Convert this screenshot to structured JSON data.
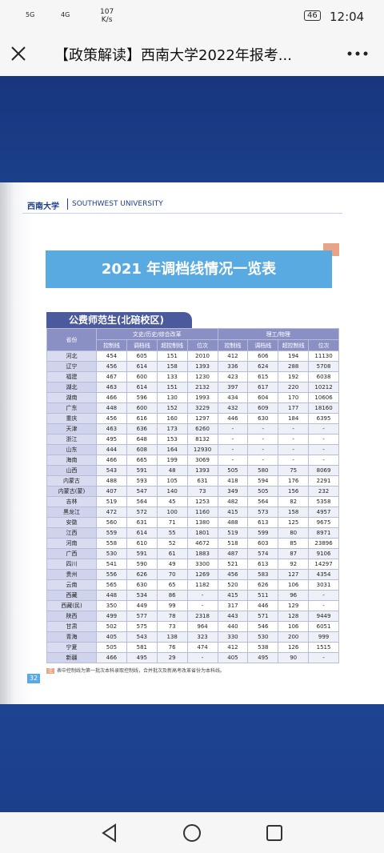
{
  "status_bar": {
    "signal_1": "5G",
    "signal_2": "4G",
    "speed": "107",
    "speed_unit": "K/s",
    "battery": "46",
    "time": "12:04"
  },
  "app_bar": {
    "title": "【政策解读】西南大学2022年报考..."
  },
  "document": {
    "logo_cn": "西南大学",
    "logo_en": "SOUTHWEST UNIVERSITY",
    "title": "2021 年调档线情况一览表",
    "section": "公费师范生(北碚校区)",
    "table": {
      "header": {
        "province": "省份",
        "group1": "文史/历史/综合改革",
        "group2": "理工/物理",
        "columns": [
          "控制线",
          "调档线",
          "超控制线",
          "位次",
          "控制线",
          "调档线",
          "超控制线",
          "位次"
        ]
      },
      "rows": [
        [
          "河北",
          "454",
          "605",
          "151",
          "2010",
          "412",
          "606",
          "194",
          "11130"
        ],
        [
          "辽宁",
          "456",
          "614",
          "158",
          "1393",
          "336",
          "624",
          "288",
          "5708"
        ],
        [
          "福建",
          "467",
          "600",
          "133",
          "1230",
          "423",
          "615",
          "192",
          "6038"
        ],
        [
          "湖北",
          "463",
          "614",
          "151",
          "2132",
          "397",
          "617",
          "220",
          "10212"
        ],
        [
          "湖南",
          "466",
          "596",
          "130",
          "1993",
          "434",
          "604",
          "170",
          "10606"
        ],
        [
          "广东",
          "448",
          "600",
          "152",
          "3229",
          "432",
          "609",
          "177",
          "18160"
        ],
        [
          "重庆",
          "456",
          "616",
          "160",
          "1297",
          "446",
          "630",
          "184",
          "6395"
        ],
        [
          "天津",
          "463",
          "636",
          "173",
          "6260",
          "-",
          "-",
          "-",
          "-"
        ],
        [
          "浙江",
          "495",
          "648",
          "153",
          "8132",
          "-",
          "-",
          "-",
          "-"
        ],
        [
          "山东",
          "444",
          "608",
          "164",
          "12930",
          "-",
          "-",
          "-",
          "-"
        ],
        [
          "海南",
          "466",
          "665",
          "199",
          "3069",
          "-",
          "-",
          "-",
          "-"
        ],
        [
          "山西",
          "543",
          "591",
          "48",
          "1393",
          "505",
          "580",
          "75",
          "8069"
        ],
        [
          "内蒙古",
          "488",
          "593",
          "105",
          "631",
          "418",
          "594",
          "176",
          "2291"
        ],
        [
          "内蒙古(蒙)",
          "407",
          "547",
          "140",
          "73",
          "349",
          "505",
          "156",
          "232"
        ],
        [
          "吉林",
          "519",
          "564",
          "45",
          "1253",
          "482",
          "564",
          "82",
          "5358"
        ],
        [
          "黑龙江",
          "472",
          "572",
          "100",
          "1160",
          "415",
          "573",
          "158",
          "4957"
        ],
        [
          "安徽",
          "560",
          "631",
          "71",
          "1380",
          "488",
          "613",
          "125",
          "9675"
        ],
        [
          "江西",
          "559",
          "614",
          "55",
          "1801",
          "519",
          "599",
          "80",
          "8971"
        ],
        [
          "河南",
          "558",
          "610",
          "52",
          "4672",
          "518",
          "603",
          "85",
          "23896"
        ],
        [
          "广西",
          "530",
          "591",
          "61",
          "1883",
          "487",
          "574",
          "87",
          "9106"
        ],
        [
          "四川",
          "541",
          "590",
          "49",
          "3300",
          "521",
          "613",
          "92",
          "14297"
        ],
        [
          "贵州",
          "556",
          "626",
          "70",
          "1269",
          "456",
          "583",
          "127",
          "4354"
        ],
        [
          "云南",
          "565",
          "630",
          "65",
          "1182",
          "520",
          "626",
          "106",
          "3031"
        ],
        [
          "西藏",
          "448",
          "534",
          "86",
          "-",
          "415",
          "511",
          "96",
          "-"
        ],
        [
          "西藏(民)",
          "350",
          "449",
          "99",
          "-",
          "317",
          "446",
          "129",
          "-"
        ],
        [
          "陕西",
          "499",
          "577",
          "78",
          "2318",
          "443",
          "571",
          "128",
          "9449"
        ],
        [
          "甘肃",
          "502",
          "575",
          "73",
          "964",
          "440",
          "546",
          "106",
          "6051"
        ],
        [
          "青海",
          "405",
          "543",
          "138",
          "323",
          "330",
          "530",
          "200",
          "999"
        ],
        [
          "宁夏",
          "505",
          "581",
          "76",
          "474",
          "412",
          "538",
          "126",
          "1515"
        ],
        [
          "新疆",
          "466",
          "495",
          "29",
          "-",
          "405",
          "495",
          "90",
          "-"
        ]
      ]
    },
    "note": "表中控制线为第一批次本科录取控制线，合并批次及新高考改革省份为本科线。",
    "page_number": "32"
  }
}
